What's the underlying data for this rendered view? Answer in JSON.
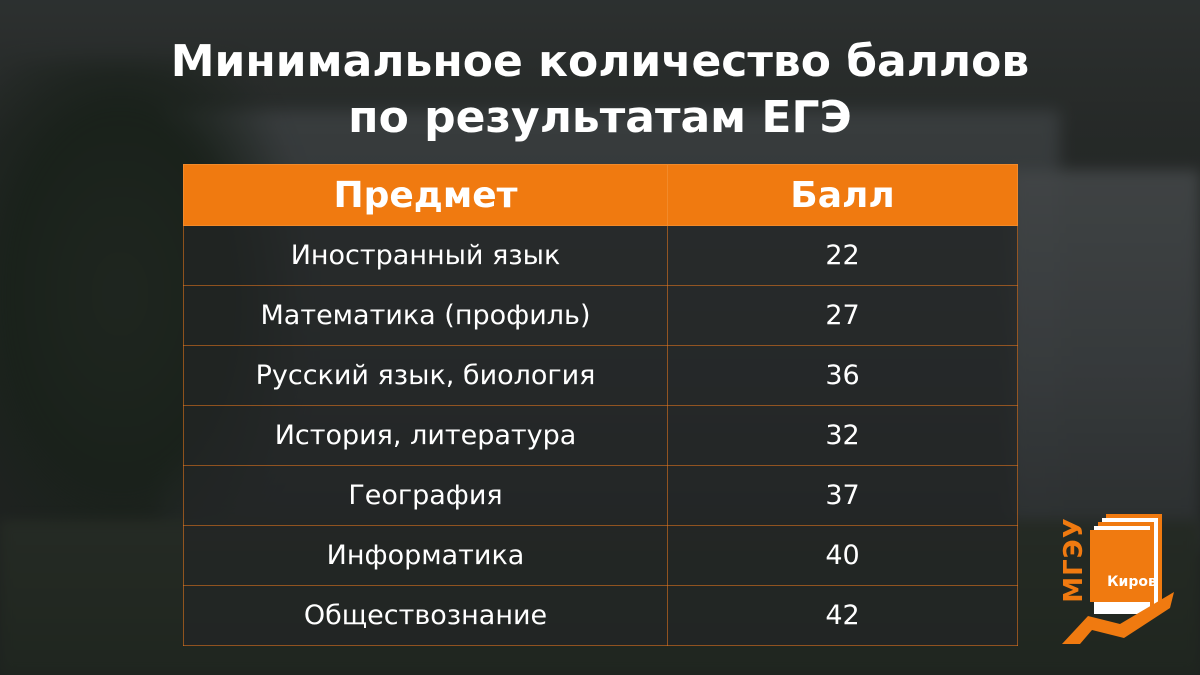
{
  "title": {
    "line1": "Минимальное количество баллов",
    "line2": "по результатам ЕГЭ"
  },
  "table": {
    "headers": {
      "subject": "Предмет",
      "score": "Балл"
    },
    "rows": [
      {
        "subject": "Иностранный язык",
        "score": "22"
      },
      {
        "subject": "Математика (профиль)",
        "score": "27"
      },
      {
        "subject": "Русский язык, биология",
        "score": "36"
      },
      {
        "subject": "История, литература",
        "score": "32"
      },
      {
        "subject": "География",
        "score": "37"
      },
      {
        "subject": "Информатика",
        "score": "40"
      },
      {
        "subject": "Обществознание",
        "score": "42"
      }
    ]
  },
  "logo": {
    "name": "МГЭУ",
    "city": "Киров",
    "icon": "book-icon"
  },
  "colors": {
    "accent": "#f07a10",
    "text": "#ffffff",
    "cell_background": "#232526"
  }
}
